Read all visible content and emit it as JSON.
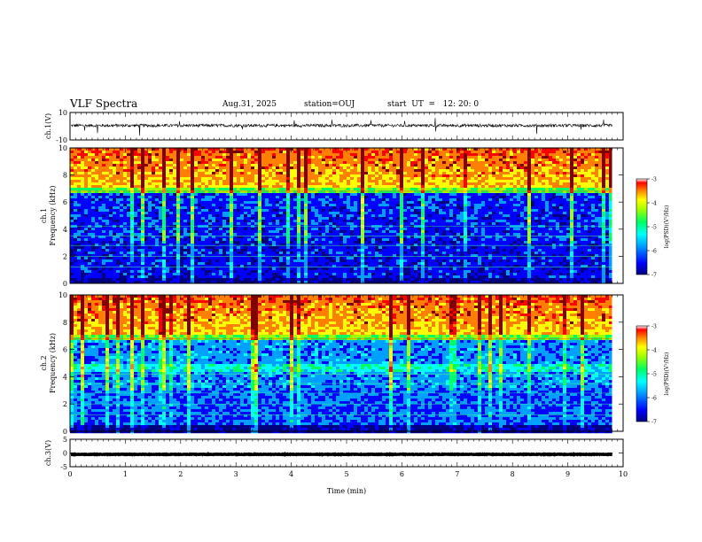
{
  "header": {
    "title": "VLF Spectra",
    "date": "Aug.31, 2025",
    "station": "station=OUJ",
    "start": "start  UT  =   12: 20: 0"
  },
  "colors": {
    "spectrogram_scale": [
      "#000080",
      "#0000ff",
      "#00a0ff",
      "#00ffff",
      "#00ff60",
      "#a0ff00",
      "#ffff00",
      "#ff8000",
      "#ff0000",
      "#800000"
    ],
    "trace": "#000000"
  },
  "chart_data": [
    {
      "type": "line",
      "panel": "ch1-waveform",
      "ylabel": "ch.1(V)",
      "ylim": [
        -10,
        10
      ],
      "yticks": [
        10,
        -10
      ],
      "x_range": [
        0,
        10
      ],
      "x_end": 9.8,
      "baseline": 0.5,
      "note_visible": "dense noisy signal with occasional spikes"
    },
    {
      "type": "heatmap",
      "panel": "ch1-spectrogram",
      "ylabel": "ch.1\nFrequency (kHz)",
      "ylim": [
        0,
        10
      ],
      "yticks": [
        0,
        2,
        4,
        6,
        8,
        10
      ],
      "x_range": [
        0,
        10
      ],
      "x_end": 9.8,
      "colorbar": {
        "label": "log(PSD)(V²/Hz)",
        "range": [
          -7,
          -3
        ],
        "ticks": [
          -3,
          -4,
          -5,
          -6,
          -7
        ]
      }
    },
    {
      "type": "heatmap",
      "panel": "ch2-spectrogram",
      "ylabel": "ch.2\nFrequency (kHz)",
      "ylim": [
        0,
        10
      ],
      "yticks": [
        0,
        2,
        4,
        6,
        8,
        10
      ],
      "x_range": [
        0,
        10
      ],
      "x_end": 9.8,
      "colorbar": {
        "label": "log(PSD)(V²/Hz)",
        "range": [
          -7,
          -3
        ],
        "ticks": [
          -3,
          -4,
          -5,
          -6,
          -7
        ]
      }
    },
    {
      "type": "line",
      "panel": "ch3-waveform",
      "ylabel": "ch.3(V)",
      "ylim": [
        -5,
        5
      ],
      "yticks": [
        5,
        0,
        -5
      ],
      "x_range": [
        0,
        10
      ],
      "x_end": 9.8,
      "baseline": -0.5,
      "xlabel": "Time (min)",
      "xticks": [
        0,
        1,
        2,
        3,
        4,
        5,
        6,
        7,
        8,
        9,
        10
      ]
    }
  ]
}
